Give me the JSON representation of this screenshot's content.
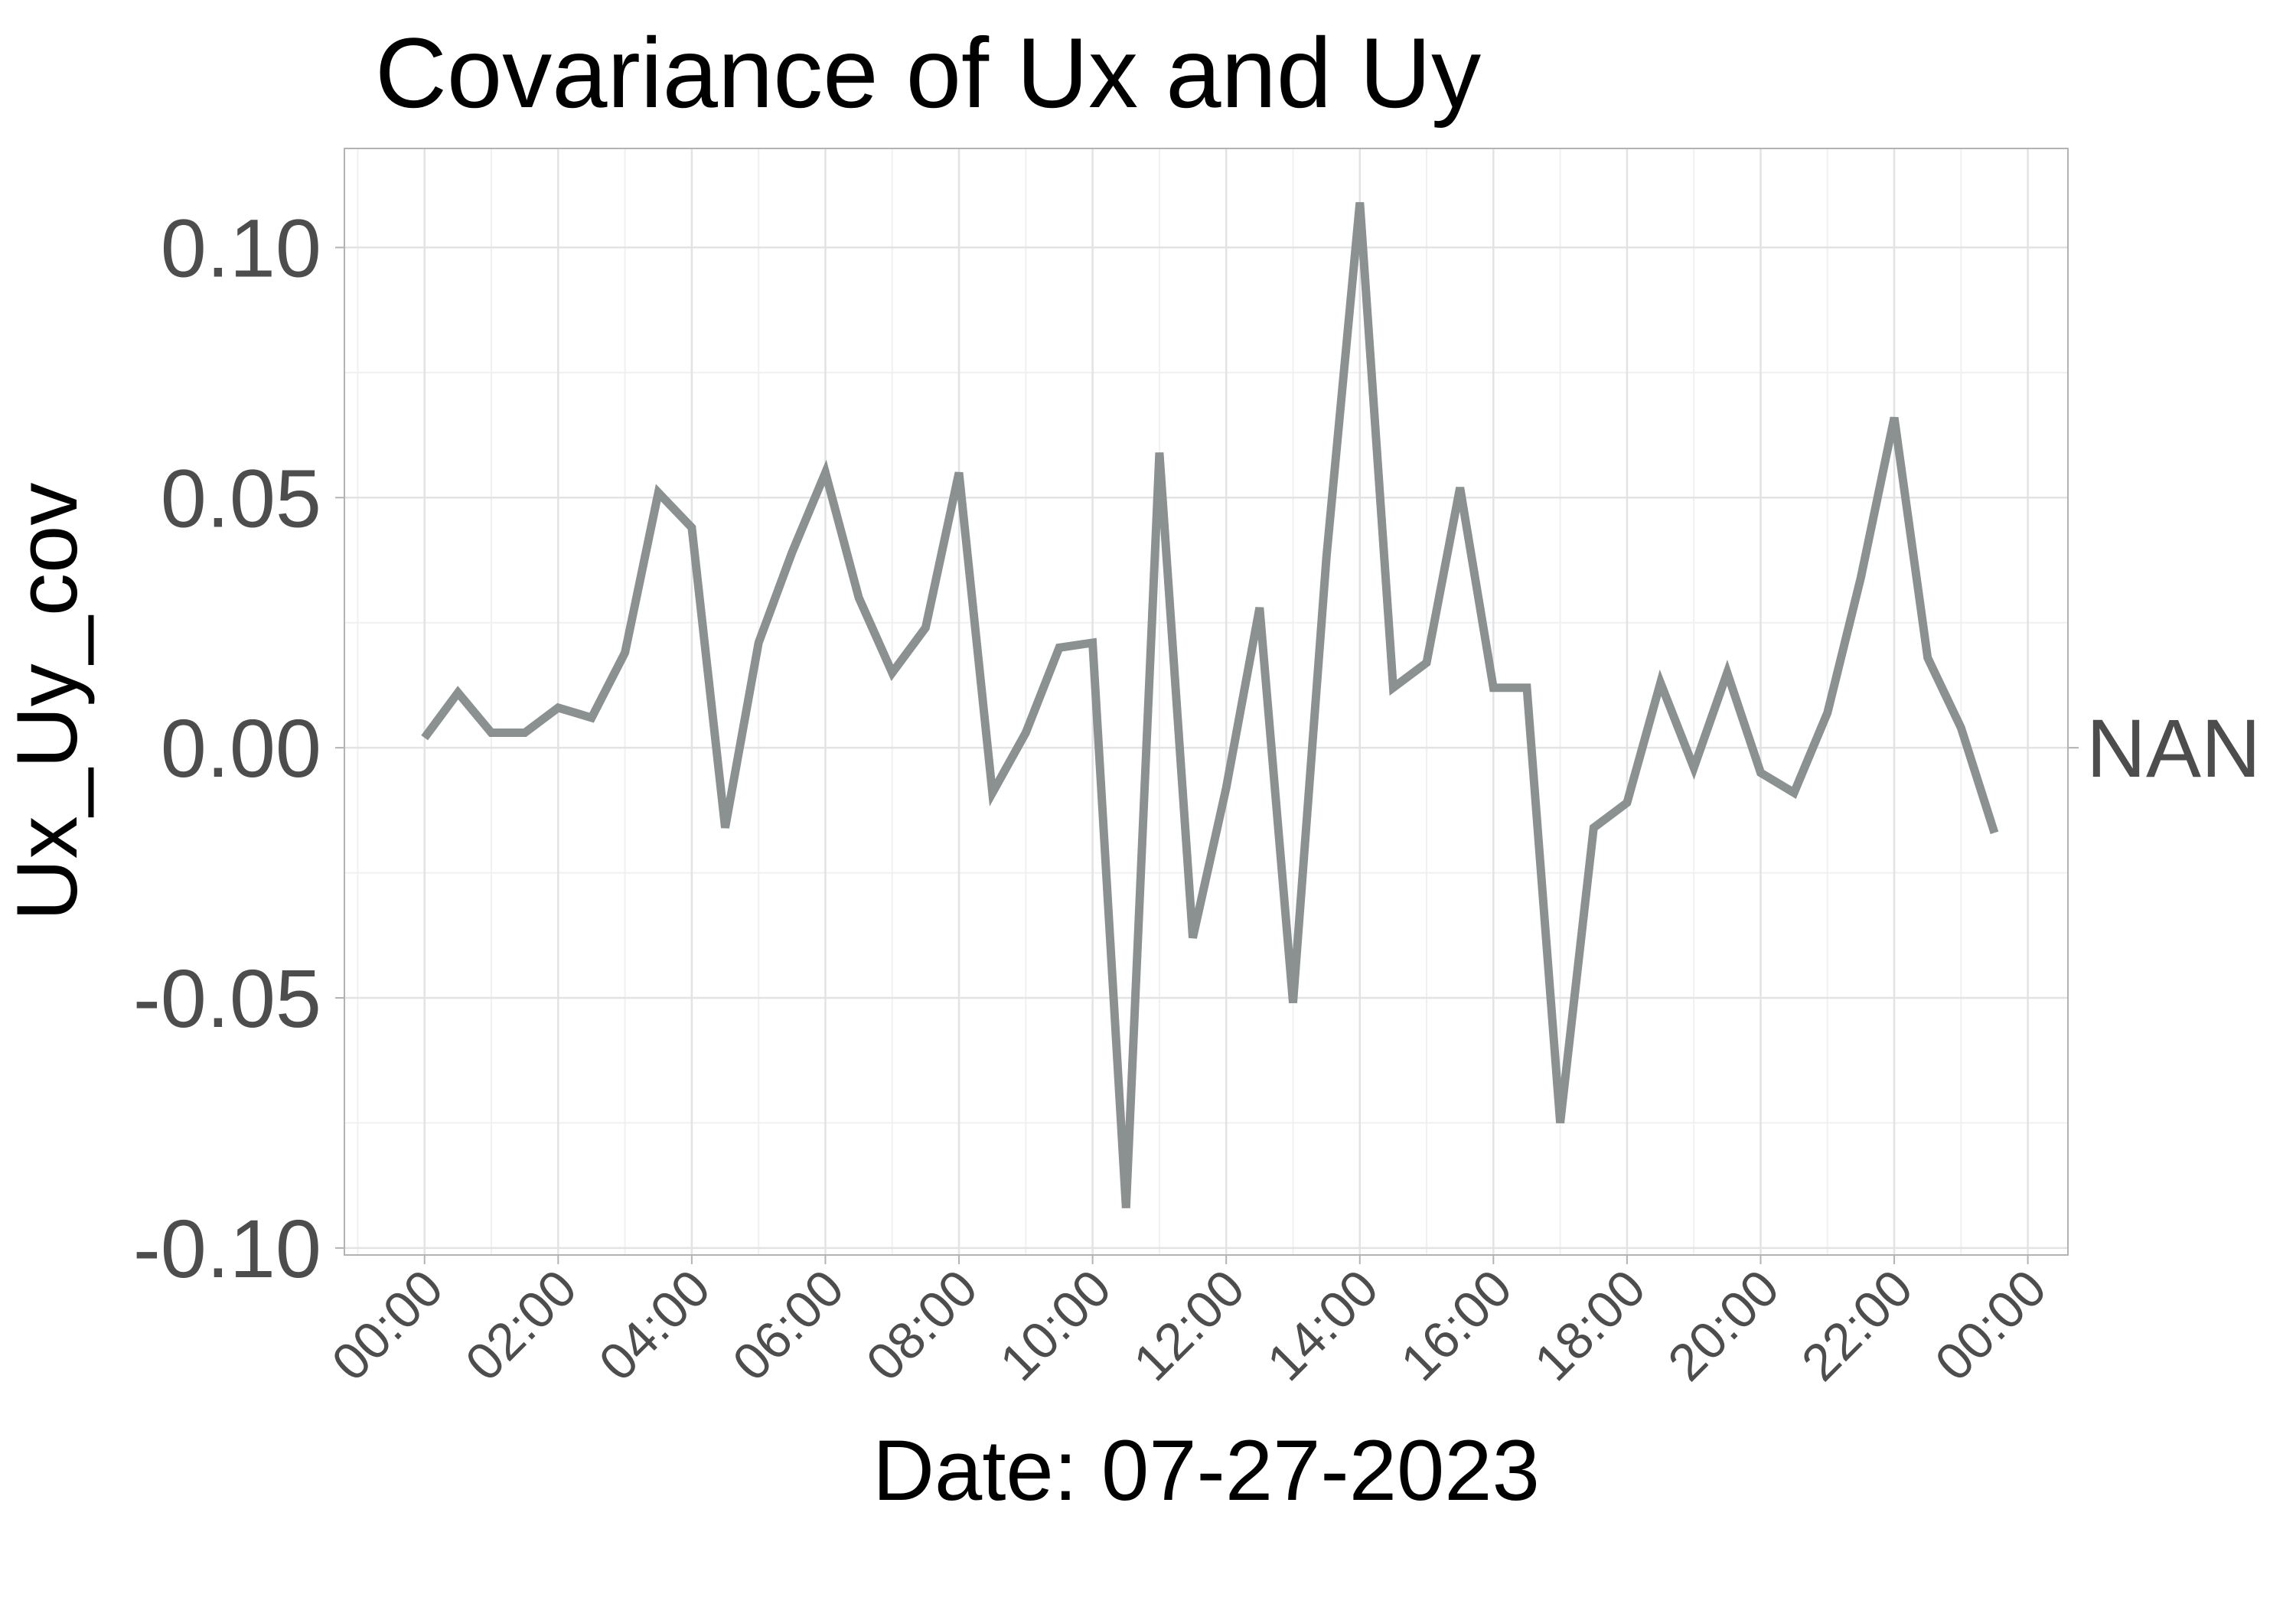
{
  "chart_data": {
    "type": "line",
    "title": "Covariance of Ux and Uy",
    "xlabel": "Date: 07-27-2023",
    "ylabel": "Ux_Uy_cov",
    "x_unit": "hours",
    "x_tick_values": [
      0,
      2,
      4,
      6,
      8,
      10,
      12,
      14,
      16,
      18,
      20,
      22,
      24
    ],
    "x_tick_labels": [
      "00:00",
      "02:00",
      "04:00",
      "06:00",
      "08:00",
      "10:00",
      "12:00",
      "14:00",
      "16:00",
      "18:00",
      "20:00",
      "22:00",
      "00:00"
    ],
    "y_tick_values": [
      -0.1,
      -0.05,
      0.0,
      0.05,
      0.1
    ],
    "y_tick_labels": [
      "-0.10",
      "-0.05",
      "0.00",
      "0.05",
      "0.10"
    ],
    "xlim": [
      -1.2,
      24.6
    ],
    "ylim": [
      -0.1014,
      0.1198
    ],
    "grid": true,
    "series": [
      {
        "color": "#8a9190",
        "x": [
          0,
          0.5,
          1,
          1.5,
          2,
          2.5,
          3,
          3.5,
          4,
          4.5,
          5,
          5.5,
          6,
          6.5,
          7,
          7.5,
          8,
          8.5,
          9,
          9.5,
          10,
          10.5,
          11,
          11.5,
          12,
          12.5,
          13,
          13.5,
          14,
          14.5,
          15,
          15.5,
          16,
          16.5,
          17,
          17.5,
          18,
          18.5,
          19,
          19.5,
          20,
          20.5,
          21,
          21.5,
          22,
          22.5,
          23,
          23.5
        ],
        "y": [
          0.002,
          0.011,
          0.003,
          0.003,
          0.008,
          0.006,
          0.019,
          0.051,
          0.044,
          -0.016,
          0.021,
          0.039,
          0.055,
          0.03,
          0.015,
          0.024,
          0.055,
          -0.009,
          0.003,
          0.02,
          0.021,
          -0.092,
          0.059,
          -0.038,
          -0.008,
          0.028,
          -0.051,
          0.038,
          0.109,
          0.012,
          0.017,
          0.052,
          0.012,
          0.012,
          -0.075,
          -0.016,
          -0.011,
          0.013,
          -0.004,
          0.015,
          -0.005,
          -0.009,
          0.007,
          0.034,
          0.066,
          0.018,
          0.004,
          -0.017
        ]
      }
    ],
    "side_label": "NAN",
    "side_label_y": 0.0
  }
}
